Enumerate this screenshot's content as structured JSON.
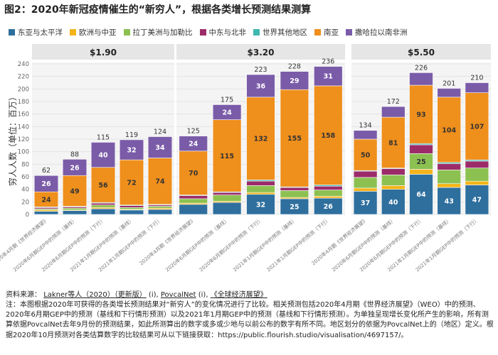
{
  "figure_title": "图2：2020年新冠疫情催生的“新穷人”，根据各类增长预测结果测算",
  "legend": [
    {
      "name": "东亚与太平洋",
      "color": "#2e6f9e"
    },
    {
      "name": "欧洲与中亚",
      "color": "#f4b41a"
    },
    {
      "name": "拉丁美洲与加勒比",
      "color": "#8cc152"
    },
    {
      "name": "中东与北非",
      "color": "#9c2b6a"
    },
    {
      "name": "世界其他地区",
      "color": "#3fb8af"
    },
    {
      "name": "南亚",
      "color": "#ef8f1c"
    },
    {
      "name": "撒哈拉以南非洲",
      "color": "#7a5ba8"
    }
  ],
  "source": {
    "prefix": "资料来源：",
    "link1": "Lakner等人（2020）（更新版）",
    "sep1": "(i),",
    "link2": "PovcalNet",
    "sep2": "(i),",
    "link3": "《全球经济展望》"
  },
  "note": "注：本图根据2020年可获得的各类增长预测结果对“新穷人”的变化情况进行了比较。相关预测包括2020年4月期《世界经济展望》（WEO）中的预测、2020年6月期GEP中的预测（基线和下行情形预测）以及2021年1月期GEP中的预测（基线和下行情形预测）。为单独呈现增长变化所产生的影响，所有测算依据PovcalNet去年9月份的预测结果，如此所测算出的数字或多或少地与以前公布的数字有所不同。地区划分的依据为PovcalNet上的（地区）定义。根据2020年10月预测对各类估算数字的比较结果可从以下链接获取：https://public.flourish.studio/visualisation/4697157/。",
  "chart_data": {
    "type": "bar",
    "stacked": true,
    "ylabel": "穷人人数（单位：百万）",
    "ylim": [
      0,
      240
    ],
    "yticks": [
      0,
      20,
      40,
      60,
      80,
      100,
      120,
      140,
      160,
      180,
      200,
      220,
      240
    ],
    "grid": true,
    "series_order": [
      "东亚与太平洋",
      "欧洲与中亚",
      "拉丁美洲与加勒比",
      "中东与北非",
      "世界其他地区",
      "南亚",
      "撒哈拉以南非洲"
    ],
    "categories": [
      "2020年4月期《世界经济展望》",
      "2020年6月期GEP中的预测（基线）",
      "2020年6月期GEP中的预测（下行）",
      "2021年1月期GEP中的预测（基线）",
      "2021年1月期GEP中的预测（下行）"
    ],
    "panels": [
      {
        "title": "$1.90",
        "totals": [
          62,
          88,
          115,
          119,
          124
        ],
        "segments": [
          [
            5,
            2,
            2,
            2,
            1,
            24,
            26
          ],
          [
            6,
            1,
            3,
            2,
            1,
            49,
            26
          ],
          [
            9,
            2,
            4,
            3,
            1,
            56,
            40
          ],
          [
            7,
            1,
            3,
            3,
            1,
            72,
            32
          ],
          [
            8,
            2,
            3,
            2,
            1,
            74,
            34
          ]
        ],
        "labels": [
          [
            null,
            null,
            null,
            null,
            null,
            "24",
            "26"
          ],
          [
            null,
            null,
            null,
            null,
            null,
            "49",
            "26"
          ],
          [
            null,
            null,
            null,
            null,
            null,
            "56",
            "40"
          ],
          [
            null,
            null,
            null,
            null,
            null,
            "72",
            "32"
          ],
          [
            null,
            null,
            null,
            null,
            null,
            "74",
            "34"
          ]
        ]
      },
      {
        "title": "$3.20",
        "totals": [
          125,
          175,
          223,
          228,
          236
        ],
        "segments": [
          [
            16,
            2,
            7,
            5,
            1,
            70,
            24
          ],
          [
            19,
            2,
            10,
            4,
            1,
            115,
            24
          ],
          [
            32,
            3,
            11,
            7,
            2,
            132,
            36
          ],
          [
            25,
            2,
            11,
            5,
            1,
            155,
            29
          ],
          [
            26,
            3,
            10,
            6,
            2,
            158,
            31
          ]
        ],
        "labels": [
          [
            null,
            null,
            null,
            null,
            null,
            "70",
            "24"
          ],
          [
            null,
            null,
            null,
            null,
            null,
            "115",
            "24"
          ],
          [
            "32",
            null,
            null,
            null,
            null,
            "132",
            "36"
          ],
          [
            "25",
            null,
            null,
            null,
            null,
            "155",
            "29"
          ],
          [
            "26",
            null,
            null,
            null,
            null,
            "158",
            "31"
          ]
        ]
      },
      {
        "title": "$5.50",
        "totals": [
          134,
          172,
          226,
          201,
          210
        ],
        "segments": [
          [
            37,
            5,
            17,
            10,
            1,
            50,
            14
          ],
          [
            40,
            6,
            17,
            10,
            1,
            81,
            17
          ],
          [
            64,
            8,
            25,
            14,
            2,
            93,
            20
          ],
          [
            43,
            6,
            22,
            10,
            2,
            104,
            14
          ],
          [
            47,
            6,
            21,
            11,
            2,
            107,
            16
          ]
        ],
        "labels": [
          [
            "37",
            null,
            null,
            null,
            null,
            "50",
            null
          ],
          [
            "40",
            null,
            null,
            null,
            null,
            "81",
            null
          ],
          [
            "64",
            null,
            "25",
            null,
            null,
            "93",
            null
          ],
          [
            "43",
            null,
            null,
            null,
            null,
            "104",
            null
          ],
          [
            "47",
            null,
            null,
            null,
            null,
            "107",
            null
          ]
        ]
      }
    ]
  }
}
